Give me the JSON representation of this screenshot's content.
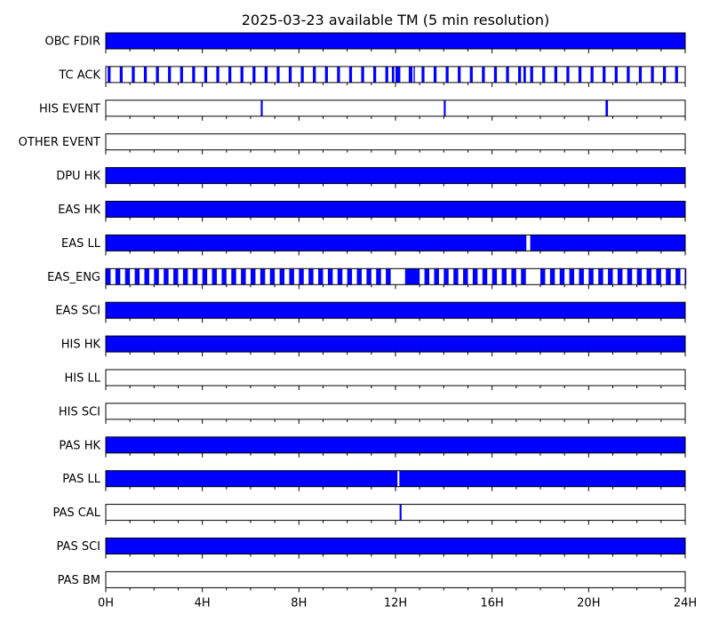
{
  "chart_data": {
    "type": "timeline",
    "title": "2025-03-23 available TM (5 min resolution)",
    "x_unit": "hour",
    "xlim": [
      0,
      24
    ],
    "x_ticks": [
      {
        "value": 0,
        "label": "0H"
      },
      {
        "value": 4,
        "label": "4H"
      },
      {
        "value": 8,
        "label": "8H"
      },
      {
        "value": 12,
        "label": "12H"
      },
      {
        "value": 16,
        "label": "16H"
      },
      {
        "value": 20,
        "label": "20H"
      },
      {
        "value": 24,
        "label": "24H"
      }
    ],
    "minor_tick_step_hours": 1,
    "colors": {
      "available": "#0000ff",
      "missing": "#ffffff",
      "frame": "#000000"
    },
    "rows": [
      {
        "name": "OBC FDIR",
        "pattern": "full"
      },
      {
        "name": "TC ACK",
        "pattern": "periodic",
        "start": 0.08,
        "period": 0.5,
        "width": 0.12,
        "extra": [
          [
            11.85,
            11.95
          ],
          [
            12.0,
            12.1
          ],
          [
            12.55,
            12.65
          ],
          [
            12.75,
            12.8
          ],
          [
            17.3,
            17.4
          ]
        ]
      },
      {
        "name": "HIS EVENT",
        "pattern": "segments",
        "segments": [
          [
            6.42,
            6.5
          ],
          [
            14.0,
            14.08
          ],
          [
            20.7,
            20.8
          ]
        ]
      },
      {
        "name": "OTHER EVENT",
        "pattern": "empty"
      },
      {
        "name": "DPU HK",
        "pattern": "full"
      },
      {
        "name": "EAS HK",
        "pattern": "full"
      },
      {
        "name": "EAS LL",
        "pattern": "segments",
        "segments": [
          [
            0,
            17.42
          ],
          [
            17.58,
            24
          ]
        ]
      },
      {
        "name": "EAS_ENG",
        "pattern": "periodic",
        "start": 0.0,
        "period": 0.4,
        "width": 0.2,
        "gaps": [
          [
            11.9,
            12.4
          ],
          [
            17.6,
            18.0
          ]
        ],
        "extra": [
          [
            12.4,
            12.85
          ]
        ]
      },
      {
        "name": "EAS SCI",
        "pattern": "full"
      },
      {
        "name": "HIS HK",
        "pattern": "full"
      },
      {
        "name": "HIS LL",
        "pattern": "empty"
      },
      {
        "name": "HIS SCI",
        "pattern": "empty"
      },
      {
        "name": "PAS HK",
        "pattern": "full"
      },
      {
        "name": "PAS LL",
        "pattern": "segments",
        "segments": [
          [
            0,
            12.08
          ],
          [
            12.16,
            24
          ]
        ]
      },
      {
        "name": "PAS CAL",
        "pattern": "segments",
        "segments": [
          [
            12.17,
            12.25
          ]
        ]
      },
      {
        "name": "PAS SCI",
        "pattern": "full"
      },
      {
        "name": "PAS BM",
        "pattern": "empty"
      }
    ]
  }
}
